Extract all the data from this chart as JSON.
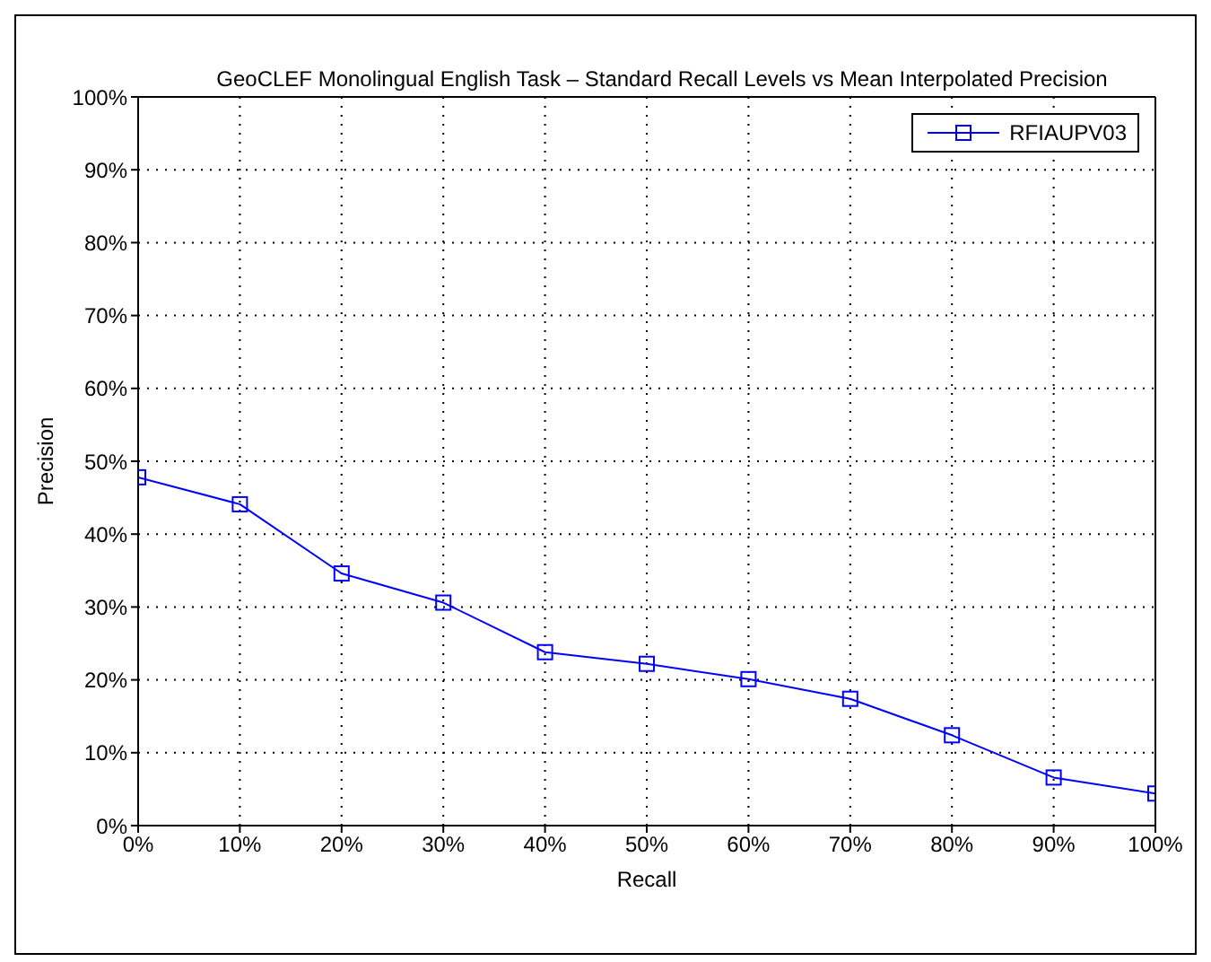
{
  "chart_data": {
    "type": "line",
    "title": "GeoCLEF Monolingual English Task – Standard Recall Levels vs Mean Interpolated Precision",
    "xlabel": "Recall",
    "ylabel": "Precision",
    "x": [
      0,
      10,
      20,
      30,
      40,
      50,
      60,
      70,
      80,
      90,
      100
    ],
    "series": [
      {
        "name": "RFIAUPV03",
        "color": "#0000ff",
        "values": [
          47.8,
          44.1,
          34.6,
          30.6,
          23.8,
          22.2,
          20.1,
          17.4,
          12.4,
          6.6,
          4.4
        ]
      }
    ],
    "xlim": [
      0,
      100
    ],
    "xticks": [
      {
        "value": 0,
        "label": "0%"
      },
      {
        "value": 10,
        "label": "10%"
      },
      {
        "value": 20,
        "label": "20%"
      },
      {
        "value": 30,
        "label": "30%"
      },
      {
        "value": 40,
        "label": "40%"
      },
      {
        "value": 50,
        "label": "50%"
      },
      {
        "value": 60,
        "label": "60%"
      },
      {
        "value": 70,
        "label": "70%"
      },
      {
        "value": 80,
        "label": "80%"
      },
      {
        "value": 90,
        "label": "90%"
      },
      {
        "value": 100,
        "label": "100%"
      }
    ],
    "ylim": [
      0,
      100
    ],
    "yticks": [
      {
        "value": 0,
        "label": "0%"
      },
      {
        "value": 10,
        "label": "10%"
      },
      {
        "value": 20,
        "label": "20%"
      },
      {
        "value": 30,
        "label": "30%"
      },
      {
        "value": 40,
        "label": "40%"
      },
      {
        "value": 50,
        "label": "50%"
      },
      {
        "value": 60,
        "label": "60%"
      },
      {
        "value": 70,
        "label": "70%"
      },
      {
        "value": 80,
        "label": "80%"
      },
      {
        "value": 90,
        "label": "90%"
      },
      {
        "value": 100,
        "label": "100%"
      }
    ],
    "grid": true,
    "legend": "top right",
    "marker": "square",
    "line_style": "solid"
  }
}
